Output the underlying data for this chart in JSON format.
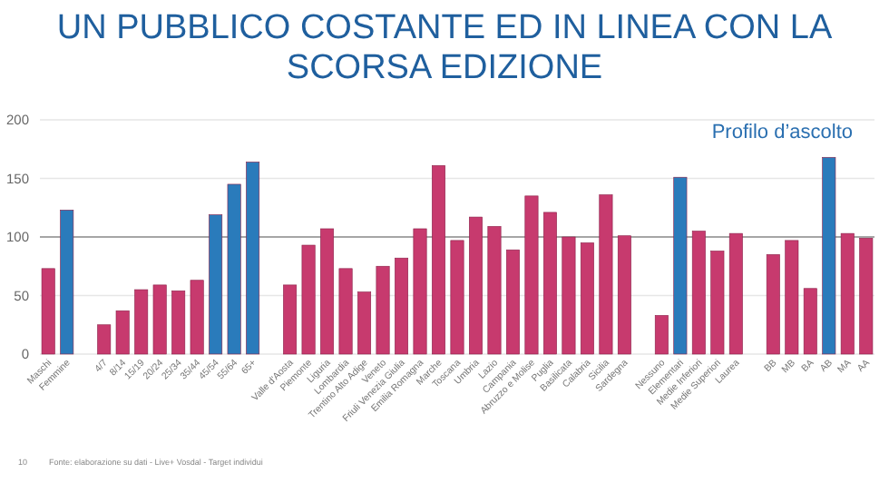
{
  "chart_data": {
    "type": "bar",
    "title": "UN PUBBLICO COSTANTE ED IN LINEA CON LA SCORSA EDIZIONE",
    "categories": [
      "Maschi",
      "Femmine",
      null,
      "4/7",
      "8/14",
      "15/19",
      "20/24",
      "25/34",
      "35/44",
      "45/54",
      "55/64",
      "65+",
      null,
      "Valle d'Aosta",
      "Piemonte",
      "Liguria",
      "Lombardia",
      "Trentino Alto Adige",
      "Veneto",
      "Friuli Venezia Giulia",
      "Emilia Romagna",
      "Marche",
      "Toscana",
      "Umbria",
      "Lazio",
      "Campania",
      "Abruzzo e Molise",
      "Puglia",
      "Basilicata",
      "Calabria",
      "Sicilia",
      "Sardegna",
      null,
      "Nessuno",
      "Elementari",
      "Medie Inferiori",
      "Medie Superiori",
      "Laurea",
      null,
      "BB",
      "MB",
      "BA",
      "AB",
      "MA",
      "AA"
    ],
    "values": [
      73,
      123,
      null,
      25,
      37,
      55,
      59,
      54,
      63,
      119,
      145,
      164,
      null,
      59,
      93,
      107,
      73,
      53,
      75,
      82,
      107,
      161,
      97,
      117,
      109,
      89,
      135,
      121,
      100,
      95,
      136,
      101,
      null,
      33,
      151,
      105,
      88,
      103,
      null,
      85,
      97,
      56,
      168,
      103,
      99
    ],
    "colors": [
      "#c73a6e",
      "#2a7bbb",
      null,
      "#c73a6e",
      "#c73a6e",
      "#c73a6e",
      "#c73a6e",
      "#c73a6e",
      "#c73a6e",
      "#2a7bbb",
      "#2a7bbb",
      "#2a7bbb",
      null,
      "#c73a6e",
      "#c73a6e",
      "#c73a6e",
      "#c73a6e",
      "#c73a6e",
      "#c73a6e",
      "#c73a6e",
      "#c73a6e",
      "#c73a6e",
      "#c73a6e",
      "#c73a6e",
      "#c73a6e",
      "#c73a6e",
      "#c73a6e",
      "#c73a6e",
      "#c73a6e",
      "#c73a6e",
      "#c73a6e",
      "#c73a6e",
      null,
      "#c73a6e",
      "#2a7bbb",
      "#c73a6e",
      "#c73a6e",
      "#c73a6e",
      null,
      "#c73a6e",
      "#c73a6e",
      "#c73a6e",
      "#2a7bbb",
      "#c73a6e",
      "#c73a6e"
    ],
    "ylim": [
      0,
      200
    ],
    "yticks": [
      0,
      50,
      100,
      150,
      200
    ],
    "grid": "y",
    "ref_lines": [
      {
        "axis": "y",
        "value": 100,
        "color": "#a6a6a6"
      }
    ],
    "annotations": [
      "Profilo d’ascolto",
      "10",
      "Fonte: elaborazione su dati - Live+ Vosdal - Target individui"
    ]
  }
}
